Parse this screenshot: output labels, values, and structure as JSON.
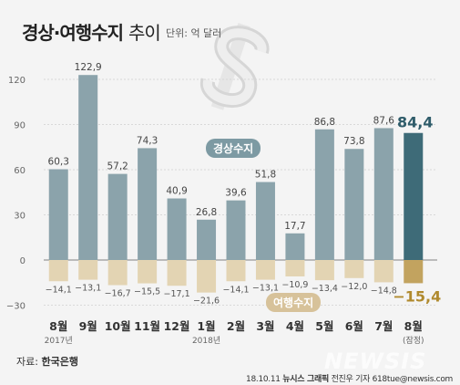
{
  "header": {
    "title_main": "경상·여행수지",
    "title_light": "추이",
    "unit": "단위: 억 달러"
  },
  "chart_data": {
    "type": "bar",
    "title": "경상·여행수지 추이",
    "unit_label": "단위: 억 달러",
    "categories": [
      "8월",
      "9월",
      "10월",
      "11월",
      "12월",
      "1월",
      "2월",
      "3월",
      "4월",
      "5월",
      "6월",
      "7월",
      "8월"
    ],
    "category_sublabels": [
      "2017년",
      "",
      "",
      "",
      "",
      "2018년",
      "",
      "",
      "",
      "",
      "",
      "",
      "(잠정)"
    ],
    "series": [
      {
        "name": "경상수지",
        "values": [
          60.3,
          122.9,
          57.2,
          74.3,
          40.9,
          26.8,
          39.6,
          51.8,
          17.7,
          86.8,
          73.8,
          87.6,
          84.4
        ],
        "labels": [
          "60,3",
          "122,9",
          "57,2",
          "74,3",
          "40,9",
          "26,8",
          "39,6",
          "51,8",
          "17,7",
          "86,8",
          "73,8",
          "87,6",
          "84,4"
        ]
      },
      {
        "name": "여행수지",
        "values": [
          -14.1,
          -13.1,
          -16.7,
          -15.5,
          -17.1,
          -21.6,
          -14.1,
          -13.1,
          -10.9,
          -13.4,
          -12.0,
          -14.8,
          -15.4
        ],
        "labels": [
          "−14,1",
          "−13,1",
          "−16,7",
          "−15,5",
          "−17,1",
          "−21,6",
          "−14,1",
          "−13,1",
          "−10,9",
          "−13,4",
          "−12,0",
          "−14,8",
          "−15,4"
        ]
      }
    ],
    "yticks": [
      120,
      90,
      60,
      30,
      0,
      -30
    ],
    "ylim": [
      -30,
      120
    ],
    "grid": true,
    "colors": {
      "current": "#8ba3ab",
      "current_latest": "#3e6b78",
      "travel": "#e3d4b3",
      "travel_latest": "#c2a35f",
      "latest_travel_label": "#b08a2e",
      "latest_current_label": "#2f5c6a"
    }
  },
  "footer": {
    "source_prefix": "자료:",
    "source_name": "한국은행",
    "credit_date": "18.10.11",
    "credit_agency": "뉴시스 그래픽",
    "credit_author": "전진우 기자 618tue@newsis.com",
    "brand": "NEWSIS"
  }
}
